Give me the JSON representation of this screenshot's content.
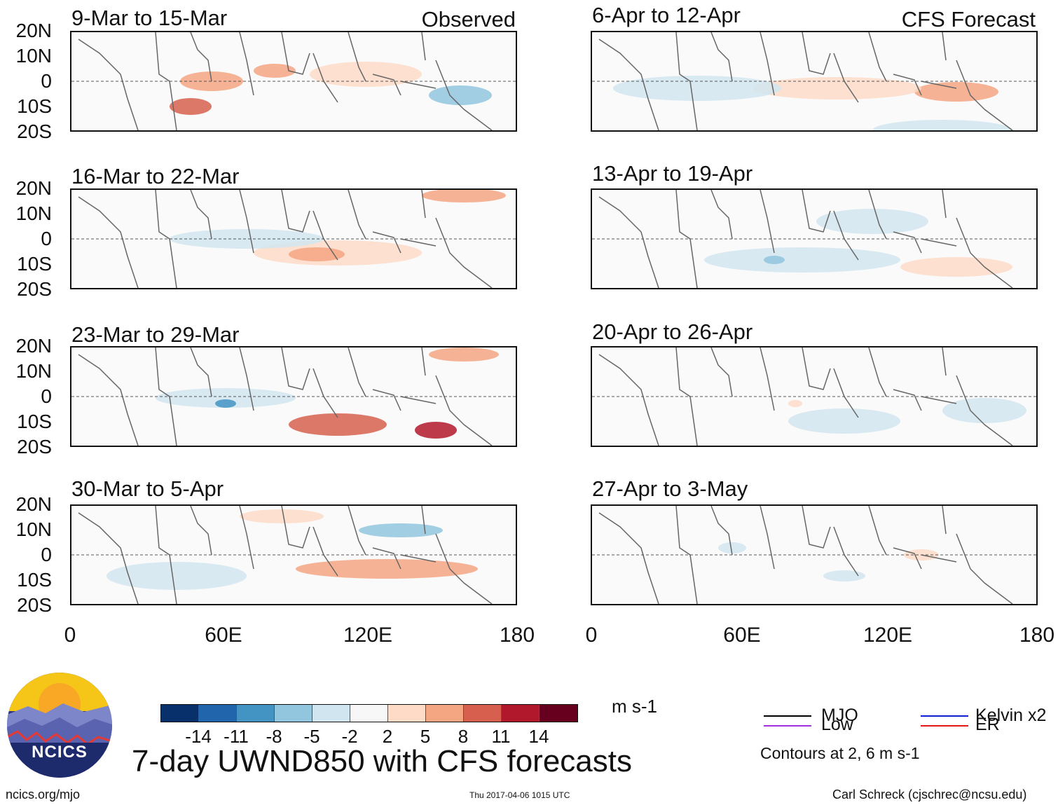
{
  "panels": [
    {
      "title": "9-Mar to 15-Mar",
      "tag": "Observed",
      "id": "obs-1"
    },
    {
      "title": "16-Mar to 22-Mar",
      "tag": "",
      "id": "obs-2"
    },
    {
      "title": "23-Mar to 29-Mar",
      "tag": "",
      "id": "obs-3"
    },
    {
      "title": "30-Mar to 5-Apr",
      "tag": "",
      "id": "obs-4"
    },
    {
      "title": "6-Apr to 12-Apr",
      "tag": "CFS Forecast",
      "id": "fc-1"
    },
    {
      "title": "13-Apr to 19-Apr",
      "tag": "",
      "id": "fc-2"
    },
    {
      "title": "20-Apr to 26-Apr",
      "tag": "",
      "id": "fc-3"
    },
    {
      "title": "27-Apr to 3-May",
      "tag": "",
      "id": "fc-4"
    }
  ],
  "lat_labels": [
    "20N",
    "10N",
    "0",
    "10S",
    "20S"
  ],
  "lon_labels": [
    "0",
    "60E",
    "120E",
    "180"
  ],
  "colorbar": {
    "colors": [
      "#08306b",
      "#2166ac",
      "#4393c3",
      "#92c5de",
      "#d1e5f0",
      "#f7f7f7",
      "#fddbc7",
      "#f4a582",
      "#d6604d",
      "#b2182b",
      "#67001f"
    ],
    "labels": [
      "-14",
      "-11",
      "-8",
      "-5",
      "-2",
      "2",
      "5",
      "8",
      "11",
      "14"
    ],
    "units": "m s-1"
  },
  "legend": {
    "items": [
      {
        "label": "MJO",
        "color": "#000000"
      },
      {
        "label": "Kelvin x2",
        "color": "#1020d0"
      },
      {
        "label": "Low",
        "color": "#a030e0"
      },
      {
        "label": "ER",
        "color": "#e01818"
      }
    ],
    "contours_note": "Contours at 2, 6 m s-1"
  },
  "title": "7-day UWND850 with CFS forecasts",
  "footer": {
    "url": "ncics.org/mjo",
    "timestamp": "Thu 2017-04-06 1015 UTC",
    "credit": "Carl Schreck (cjschrec@ncsu.edu)"
  },
  "logo": {
    "text": "NCICS"
  }
}
